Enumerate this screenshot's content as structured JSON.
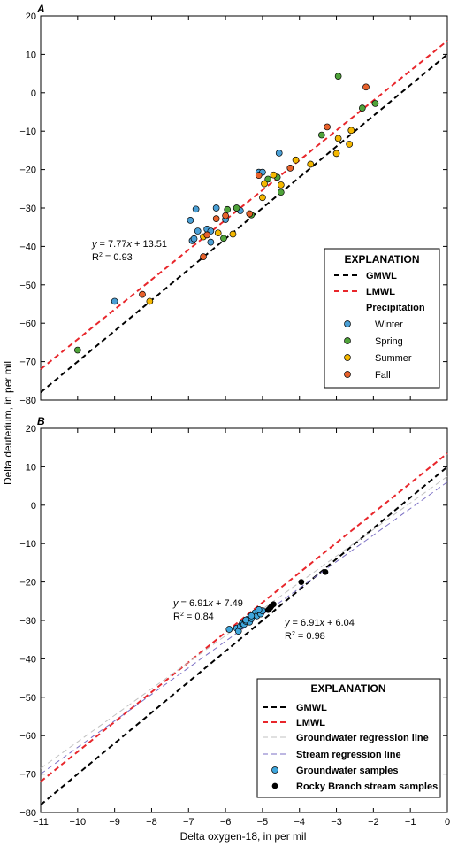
{
  "ylabel": "Delta deuterium, in per mil",
  "xlabel": "Delta oxygen-18, in per mil",
  "colors": {
    "gmwl": "#000000",
    "lmwl": "#e8262b",
    "winter": "#4a9fd5",
    "spring": "#4fa33a",
    "summer": "#f5b800",
    "fall": "#e8622c",
    "groundwater": "#3fa6dc",
    "stream": "#000000",
    "gw_regression": "#c0c0c0",
    "stream_regression": "#7b6fc4"
  },
  "chart_data": [
    {
      "type": "scatter",
      "panel_label": "A",
      "xlim": [
        -11,
        0
      ],
      "ylim": [
        -80,
        20
      ],
      "xticks": [
        "−11",
        "−10",
        "−9",
        "−8",
        "−7",
        "−6",
        "−5",
        "−4",
        "−3",
        "−2",
        "−1",
        "0"
      ],
      "yticks": [
        "−80",
        "−70",
        "−60",
        "−50",
        "−40",
        "−30",
        "−20",
        "−10",
        "0",
        "10",
        "20"
      ],
      "lines": [
        {
          "name": "GMWL",
          "slope": 8,
          "intercept": 10
        },
        {
          "name": "LMWL",
          "slope": 7.77,
          "intercept": 13.51
        }
      ],
      "equation": {
        "y_var": "y",
        "eq_rest": " = 7.77",
        "x_var": "x",
        "eq_tail": " + 13.51",
        "r2_lead": "R",
        "r2_sup": "2",
        "r2_tail": " = 0.93"
      },
      "series": [
        {
          "name": "Winter",
          "points": [
            [
              -9.0,
              -54.3
            ],
            [
              -6.95,
              -33.2
            ],
            [
              -6.9,
              -38.5
            ],
            [
              -6.85,
              -38.0
            ],
            [
              -6.75,
              -36.0
            ],
            [
              -6.8,
              -30.3
            ],
            [
              -6.5,
              -35.5
            ],
            [
              -6.4,
              -36.0
            ],
            [
              -6.4,
              -38.9
            ],
            [
              -6.25,
              -30.0
            ],
            [
              -6.0,
              -33.0
            ],
            [
              -5.6,
              -30.7
            ],
            [
              -5.1,
              -20.7
            ],
            [
              -5.0,
              -20.7
            ],
            [
              -4.55,
              -15.7
            ]
          ]
        },
        {
          "name": "Spring",
          "points": [
            [
              -10.0,
              -67.0
            ],
            [
              -6.05,
              -37.9
            ],
            [
              -5.95,
              -30.4
            ],
            [
              -5.7,
              -30.0
            ],
            [
              -5.3,
              -31.8
            ],
            [
              -4.85,
              -22.5
            ],
            [
              -4.6,
              -22.0
            ],
            [
              -4.5,
              -25.9
            ],
            [
              -3.4,
              -11.0
            ],
            [
              -2.95,
              4.3
            ],
            [
              -2.3,
              -4.0
            ],
            [
              -1.95,
              -2.8
            ]
          ]
        },
        {
          "name": "Summer",
          "points": [
            [
              -8.05,
              -54.3
            ],
            [
              -6.6,
              -37.5
            ],
            [
              -6.2,
              -36.5
            ],
            [
              -5.8,
              -36.8
            ],
            [
              -5.0,
              -27.3
            ],
            [
              -4.95,
              -23.7
            ],
            [
              -4.7,
              -21.4
            ],
            [
              -4.5,
              -24.0
            ],
            [
              -4.1,
              -17.5
            ],
            [
              -3.7,
              -18.6
            ],
            [
              -3.0,
              -15.8
            ],
            [
              -2.95,
              -11.9
            ],
            [
              -2.6,
              -9.8
            ],
            [
              -2.65,
              -13.4
            ]
          ]
        },
        {
          "name": "Fall",
          "points": [
            [
              -8.25,
              -52.5
            ],
            [
              -6.6,
              -42.7
            ],
            [
              -6.5,
              -37.0
            ],
            [
              -6.25,
              -32.8
            ],
            [
              -6.0,
              -32.0
            ],
            [
              -5.35,
              -31.5
            ],
            [
              -5.1,
              -21.5
            ],
            [
              -4.25,
              -19.6
            ],
            [
              -3.25,
              -8.9
            ],
            [
              -2.2,
              1.5
            ]
          ]
        }
      ],
      "legend": {
        "title": "EXPLANATION",
        "position": "lower-right",
        "items": [
          "GMWL",
          "LMWL"
        ],
        "subheading": "Precipitation",
        "series": [
          "Winter",
          "Spring",
          "Summer",
          "Fall"
        ]
      }
    },
    {
      "type": "scatter",
      "panel_label": "B",
      "xlim": [
        -11,
        0
      ],
      "ylim": [
        -80,
        20
      ],
      "xticks": [
        "−11",
        "−10",
        "−9",
        "−8",
        "−7",
        "−6",
        "−5",
        "−4",
        "−3",
        "−2",
        "−1",
        "0"
      ],
      "yticks": [
        "−80",
        "−70",
        "−60",
        "−50",
        "−40",
        "−30",
        "−20",
        "−10",
        "0",
        "10",
        "20"
      ],
      "lines": [
        {
          "name": "GMWL",
          "slope": 8,
          "intercept": 10
        },
        {
          "name": "LMWL",
          "slope": 7.77,
          "intercept": 13.51
        },
        {
          "name": "Groundwater regression line",
          "slope": 6.91,
          "intercept": 7.49
        },
        {
          "name": "Stream regression line",
          "slope": 6.91,
          "intercept": 6.04
        }
      ],
      "equations": [
        {
          "y_var": "y",
          "eq_rest": " = 6.91",
          "x_var": "x",
          "eq_tail": " + 7.49",
          "r2_lead": "R",
          "r2_sup": "2",
          "r2_tail": " = 0.84"
        },
        {
          "y_var": "y",
          "eq_rest": " = 6.91",
          "x_var": "x",
          "eq_tail": " + 6.04",
          "r2_lead": "R",
          "r2_sup": "2",
          "r2_tail": " = 0.98"
        }
      ],
      "series": [
        {
          "name": "Groundwater samples",
          "points": [
            [
              -5.9,
              -32.3
            ],
            [
              -5.7,
              -32.0
            ],
            [
              -5.65,
              -32.8
            ],
            [
              -5.6,
              -31.5
            ],
            [
              -5.55,
              -30.8
            ],
            [
              -5.5,
              -31.0
            ],
            [
              -5.45,
              -30.2
            ],
            [
              -5.4,
              -29.7
            ],
            [
              -5.35,
              -30.4
            ],
            [
              -5.3,
              -29.5
            ],
            [
              -5.25,
              -28.5
            ],
            [
              -5.2,
              -28.0
            ],
            [
              -5.15,
              -28.8
            ],
            [
              -5.1,
              -27.7
            ],
            [
              -5.05,
              -28.3
            ],
            [
              -5.0,
              -27.5
            ],
            [
              -5.1,
              -27.2
            ],
            [
              -5.3,
              -28.8
            ],
            [
              -5.45,
              -29.9
            ]
          ]
        },
        {
          "name": "Rocky Branch stream samples",
          "points": [
            [
              -4.85,
              -27.3
            ],
            [
              -4.8,
              -26.8
            ],
            [
              -4.75,
              -26.2
            ],
            [
              -4.7,
              -25.8
            ],
            [
              -4.78,
              -26.6
            ],
            [
              -3.95,
              -20.0
            ],
            [
              -3.3,
              -17.4
            ]
          ]
        }
      ],
      "legend": {
        "title": "EXPLANATION",
        "position": "lower-right",
        "items": [
          "GMWL",
          "LMWL",
          "Groundwater regression line",
          "Stream regression line",
          "Groundwater samples",
          "Rocky Branch stream samples"
        ]
      }
    }
  ]
}
